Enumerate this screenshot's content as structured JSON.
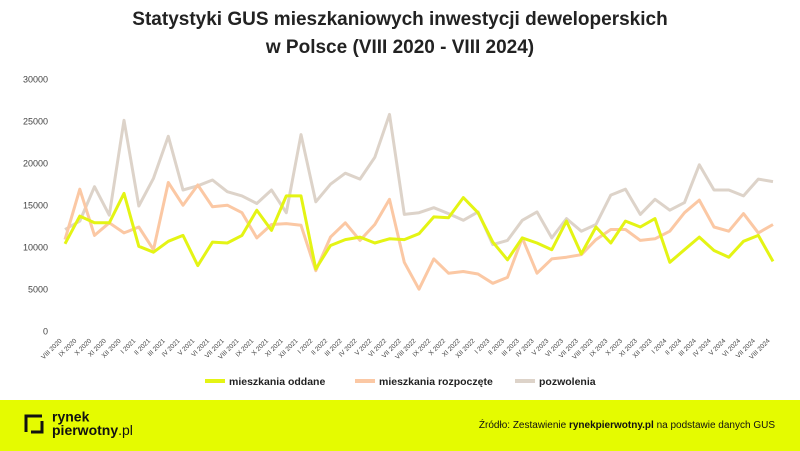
{
  "chart_data": {
    "type": "line",
    "title": [
      "Statystyki GUS mieszkaniowych inwestycji deweloperskich",
      "w Polsce (VIII 2020 - VIII 2024)"
    ],
    "categories": [
      "VIII 2020",
      "IX 2020",
      "X 2020",
      "XI 2020",
      "XII 2020",
      "I 2021",
      "II 2021",
      "III 2021",
      "IV 2021",
      "V 2021",
      "VI 2021",
      "VII 2021",
      "VIII 2021",
      "IX 2021",
      "X 2021",
      "XI 2021",
      "XII 2021",
      "I 2022",
      "II 2022",
      "III 2022",
      "IV 2022",
      "V 2022",
      "VI 2022",
      "VII 2022",
      "VIII 2022",
      "IX 2022",
      "X 2022",
      "XI 2022",
      "XII 2022",
      "I 2023",
      "II 2023",
      "III 2023",
      "IV 2023",
      "V 2023",
      "VI 2023",
      "VII 2023",
      "VIII 2023",
      "IX 2023",
      "X 2023",
      "XI 2023",
      "XII 2023",
      "I 2024",
      "II 2024",
      "III 2024",
      "IV 2024",
      "V 2024",
      "VI 2024",
      "VII 2024",
      "VIII 2024"
    ],
    "series": [
      {
        "name": "mieszkania oddane",
        "color": "#e4f414",
        "values": [
          10500,
          13800,
          13000,
          13000,
          16500,
          10200,
          9500,
          10800,
          11500,
          7900,
          10700,
          10600,
          11500,
          14500,
          12100,
          16200,
          16200,
          7500,
          10300,
          11000,
          11300,
          10600,
          11100,
          11000,
          11700,
          13700,
          13600,
          16000,
          14200,
          10700,
          8600,
          11200,
          10600,
          9800,
          13200,
          9300,
          12500,
          10600,
          13200,
          12500,
          13500,
          8300,
          9800,
          11300,
          9700,
          8900,
          10800,
          11500,
          8400
        ]
      },
      {
        "name": "mieszkania rozpoczęte",
        "color": "#fbc8a4",
        "values": [
          11000,
          17000,
          11500,
          13000,
          11800,
          12500,
          9800,
          17800,
          15100,
          17500,
          14900,
          15100,
          14200,
          11200,
          12800,
          12900,
          12700,
          7300,
          11300,
          13000,
          10900,
          12800,
          15800,
          8300,
          5100,
          8700,
          7000,
          7200,
          6900,
          5800,
          6500,
          11200,
          7000,
          8700,
          8900,
          9200,
          11000,
          12200,
          12200,
          10900,
          11100,
          12000,
          14200,
          15700,
          12500,
          12000,
          14100,
          11800,
          12800
        ]
      },
      {
        "name": "pozwolenia",
        "color": "#ddd3c9",
        "values": [
          12200,
          13200,
          17300,
          13900,
          25200,
          15000,
          18300,
          23300,
          16900,
          17400,
          18100,
          16700,
          16200,
          15300,
          16900,
          14200,
          23500,
          15500,
          17600,
          18900,
          18200,
          20800,
          25900,
          14000,
          14200,
          14800,
          14100,
          13300,
          14300,
          10400,
          10900,
          13300,
          14300,
          11200,
          13500,
          12000,
          12800,
          16300,
          17000,
          14000,
          15800,
          14500,
          15400,
          19900,
          16900,
          16900,
          16200,
          18200,
          17900
        ]
      }
    ],
    "ylim": [
      0,
      30000
    ],
    "yticks": [
      0,
      5000,
      10000,
      15000,
      20000,
      25000,
      30000
    ],
    "grid": false,
    "legend": "bottom"
  },
  "footer": {
    "logo": [
      "rynek",
      "pierwotny",
      ".pl"
    ],
    "source": [
      "Źródło: Zestawienie ",
      "rynekpierwotny.pl",
      " na podstawie danych GUS"
    ]
  }
}
